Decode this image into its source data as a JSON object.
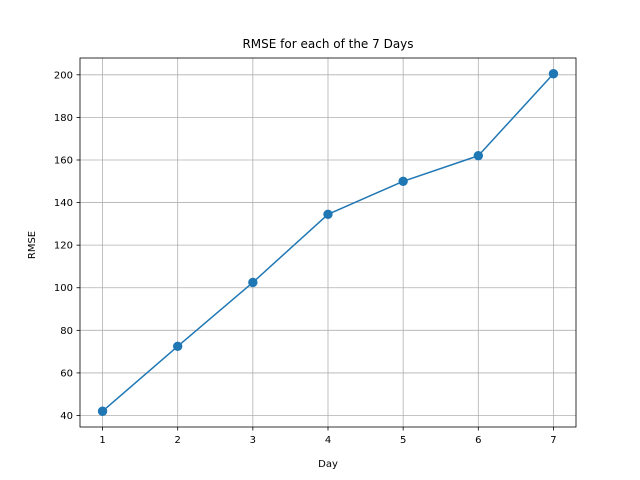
{
  "chart_data": {
    "type": "line",
    "title": "RMSE for each of the 7 Days",
    "xlabel": "Day",
    "ylabel": "RMSE",
    "x": [
      1,
      2,
      3,
      4,
      5,
      6,
      7
    ],
    "series": [
      {
        "values": [
          42,
          72.5,
          102.5,
          134.5,
          150,
          162,
          200.5
        ],
        "color": "#1f77b4",
        "marker": "circle"
      }
    ],
    "xticks": [
      "1",
      "2",
      "3",
      "4",
      "5",
      "6",
      "7"
    ],
    "yticks": [
      "40",
      "60",
      "80",
      "100",
      "120",
      "140",
      "160",
      "180",
      "200"
    ],
    "xlim": [
      0.7,
      7.3
    ],
    "ylim": [
      34.6,
      207.9
    ],
    "grid": true
  }
}
